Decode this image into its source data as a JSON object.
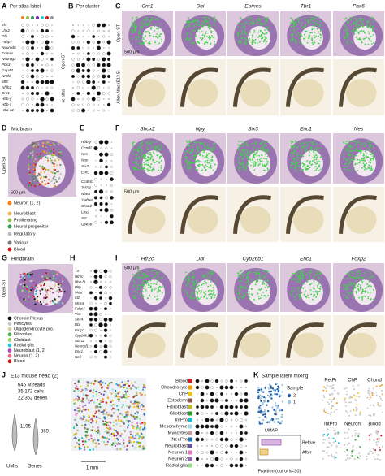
{
  "A": {
    "label": "A",
    "title": "Per atlas label",
    "genes": [
      "Id4",
      "Lhx2",
      "Dbi",
      "Fabp7",
      "Neurod6",
      "Eomes",
      "Neurog2",
      "Pbx3",
      "Gap43",
      "Nr2f1",
      "Mt3",
      "Nhlh2",
      "Cnr1",
      "Hbb-y",
      "Hbb-x",
      "Hba-a2"
    ],
    "side_labels": [
      "Open-ST",
      "sc atlas"
    ]
  },
  "B": {
    "label": "B",
    "title": "Per cluster"
  },
  "C": {
    "label": "C",
    "genes": [
      "Cnr1",
      "Dbi",
      "Eomes",
      "Tbr1",
      "Pax6"
    ],
    "row_labels": [
      "Open-ST",
      "Allen Atlas (E13.5)"
    ],
    "scale": "500 μm"
  },
  "D": {
    "label": "D",
    "title": "Midbrain",
    "row_label": "Open-ST",
    "scale": "500 μm",
    "legend": [
      {
        "name": "Neuron (1, 2)",
        "color": "#f0821e"
      },
      {
        "name": "Neuroblast",
        "color": "#f3b55a"
      },
      {
        "name": "Proliferating",
        "color": "#8bc34a"
      },
      {
        "name": "Neural progenitor",
        "color": "#2e9e4f"
      },
      {
        "name": "Regulatory",
        "color": "#bdbdbd"
      },
      {
        "name": "Various",
        "color": "#7a7a7a"
      },
      {
        "name": "Blood",
        "color": "#d7191c"
      }
    ]
  },
  "E": {
    "label": "E",
    "genes": [
      "Hbb-y",
      "Ccnd2",
      "Nes",
      "Npy",
      "Six3",
      "Enc1",
      "Ccdc61",
      "Tcf7l2",
      "Nbea",
      "Ywhae",
      "Shox2",
      "Lhx2",
      "Sst",
      "Gsk3b"
    ]
  },
  "F": {
    "label": "F",
    "genes": [
      "Shox2",
      "Npy",
      "Six3",
      "Enc1",
      "Nes"
    ],
    "scale": "500 μm"
  },
  "G": {
    "label": "G",
    "title": "Hindbrain",
    "row_label": "Open-ST",
    "legend": [
      {
        "name": "Choroid Plexus",
        "color": "#111111"
      },
      {
        "name": "Pericytes",
        "color": "#c8c8c8"
      },
      {
        "name": "Oligodendrocyte pro.",
        "color": "#e0c9a6"
      },
      {
        "name": "Fibroblast",
        "color": "#4caf50"
      },
      {
        "name": "Glioblast",
        "color": "#9ccc65"
      },
      {
        "name": "Radial glia",
        "color": "#26c6da"
      },
      {
        "name": "Neuroblast (1, 2)",
        "color": "#ab47bc"
      },
      {
        "name": "Neuron (1, 2)",
        "color": "#f06292"
      },
      {
        "name": "Blood",
        "color": "#d7191c"
      }
    ]
  },
  "H": {
    "label": "H",
    "genes": [
      "Ttr",
      "Htr2c",
      "Hbb-bt",
      "Pltp",
      "Mest",
      "Id2",
      "Mcm6",
      "Fabp7",
      "Vim",
      "Sox4",
      "Dbi",
      "Foxp2",
      "Cyp26b1",
      "Sox11",
      "Neurod1",
      "Enc1",
      "Nefl"
    ]
  },
  "I": {
    "label": "I",
    "genes": [
      "Htr2c",
      "Dbi",
      "Cyp26b1",
      "Enc1",
      "Foxp2"
    ],
    "scale": "500 μm"
  },
  "J": {
    "label": "J",
    "title": "E13 mouse head (2)",
    "stats": [
      "646 M reads",
      "35,172 cells",
      "22,362 genes"
    ],
    "violin_labels": [
      "1195",
      "869"
    ],
    "violin_axis": [
      "UMIs",
      "Genes"
    ],
    "scale": "1 mm",
    "legend": [
      {
        "name": "Blood",
        "color": "#d7191c"
      },
      {
        "name": "Chondrocyte",
        "color": "#f39c12"
      },
      {
        "name": "ChP",
        "color": "#f1c40f"
      },
      {
        "name": "Ectoderm",
        "color": "#8c564b"
      },
      {
        "name": "Fibroblast",
        "color": "#bcbd22"
      },
      {
        "name": "Glioblast",
        "color": "#2ca02c"
      },
      {
        "name": "IntPro",
        "color": "#17becf"
      },
      {
        "name": "Mesenchyme",
        "color": "#9edae5"
      },
      {
        "name": "Myocytes",
        "color": "#c49c94"
      },
      {
        "name": "NeuPro",
        "color": "#1f77b4"
      },
      {
        "name": "Neuroblast",
        "color": "#6a51a3"
      },
      {
        "name": "Neuron 1",
        "color": "#e377c2"
      },
      {
        "name": "Neuron 2",
        "color": "#9467bd"
      },
      {
        "name": "Radial glia",
        "color": "#98df8a"
      }
    ]
  },
  "K": {
    "label": "K",
    "title": "Sample latent mixing",
    "legend_title": "Sample",
    "samples": [
      "2",
      "1"
    ],
    "umap": "UMAP",
    "box_labels": [
      "Before",
      "After"
    ],
    "x_label": "Fraction (out of k=30)",
    "small_panels": [
      "RetPr",
      "ChP",
      "Chond",
      "IntPro",
      "Neuron",
      "Blood"
    ]
  }
}
